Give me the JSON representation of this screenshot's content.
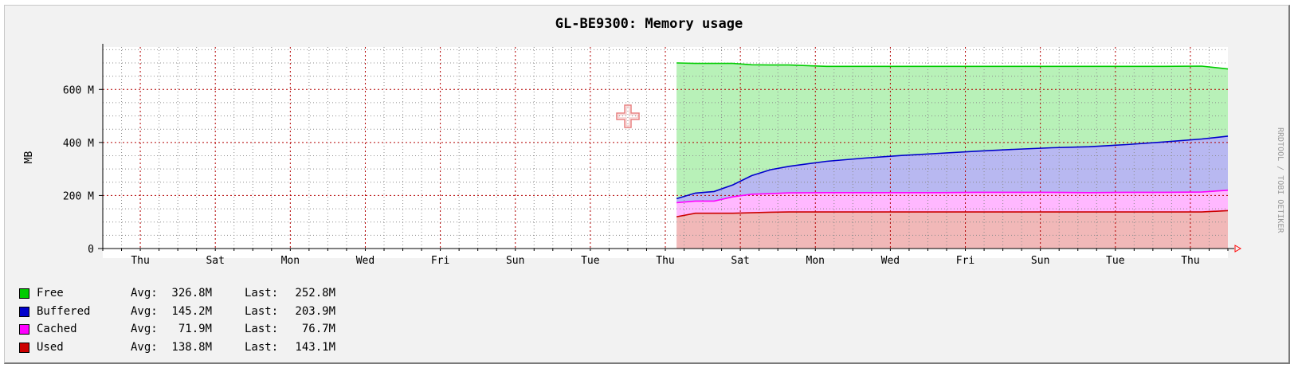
{
  "colors": {
    "free": "#00cc00",
    "buffered": "#0000cc",
    "cached": "#ff00ff",
    "used": "#cc0000",
    "grid": "#b30000"
  },
  "chart_data": {
    "type": "area",
    "title": "GL-BE9300: Memory usage",
    "ylabel": "MB",
    "ylim": [
      0,
      760
    ],
    "y_ticks": [
      {
        "value": 0,
        "label": "0"
      },
      {
        "value": 200,
        "label": "200 M"
      },
      {
        "value": 400,
        "label": "400 M"
      },
      {
        "value": 600,
        "label": "600 M"
      }
    ],
    "x_ticks": [
      "Thu",
      "Sat",
      "Mon",
      "Wed",
      "Fri",
      "Sun",
      "Tue",
      "Thu",
      "Sat",
      "Mon",
      "Wed",
      "Fri",
      "Sun",
      "Tue",
      "Thu"
    ],
    "x_days": 30,
    "stacked": true,
    "grid": true,
    "legend_position": "bottom-left",
    "data_start_day": 15.3,
    "x": [
      15.3,
      15.8,
      16.3,
      16.8,
      17.3,
      17.8,
      18.3,
      19.3,
      20.3,
      21.3,
      22.3,
      23.3,
      24.3,
      25.3,
      26.3,
      27.3,
      28.3,
      29.3,
      30.0
    ],
    "series": [
      {
        "name": "Used",
        "key": "used",
        "values": [
          120,
          133,
          133,
          133,
          135,
          137,
          138,
          138,
          138,
          138,
          138,
          138,
          138,
          138,
          138,
          138,
          138,
          138,
          143
        ]
      },
      {
        "name": "Cached",
        "key": "cached",
        "values": [
          53,
          46,
          46,
          62,
          70,
          70,
          72,
          73,
          73,
          73,
          73,
          74,
          74,
          74,
          73,
          74,
          74,
          75,
          77
        ]
      },
      {
        "name": "Buffered",
        "key": "buffered",
        "values": [
          15,
          30,
          36,
          45,
          70,
          90,
          100,
          118,
          130,
          140,
          148,
          155,
          162,
          168,
          173,
          180,
          190,
          200,
          204
        ]
      },
      {
        "name": "Free",
        "key": "free",
        "values": [
          512,
          489,
          483,
          458,
          418,
          395,
          382,
          358,
          346,
          336,
          328,
          320,
          313,
          307,
          303,
          295,
          285,
          275,
          253
        ]
      }
    ],
    "legend": [
      {
        "name": "Free",
        "key": "free",
        "avg": "326.8M",
        "last": "252.8M"
      },
      {
        "name": "Buffered",
        "key": "buffered",
        "avg": "145.2M",
        "last": "203.9M"
      },
      {
        "name": "Cached",
        "key": "cached",
        "avg": "71.9M",
        "last": "76.7M"
      },
      {
        "name": "Used",
        "key": "used",
        "avg": "138.8M",
        "last": "143.1M"
      }
    ],
    "legend_labels": {
      "avg": "Avg:",
      "last": "Last:"
    },
    "watermark": "RRDTOOL / TOBI OETIKER"
  }
}
